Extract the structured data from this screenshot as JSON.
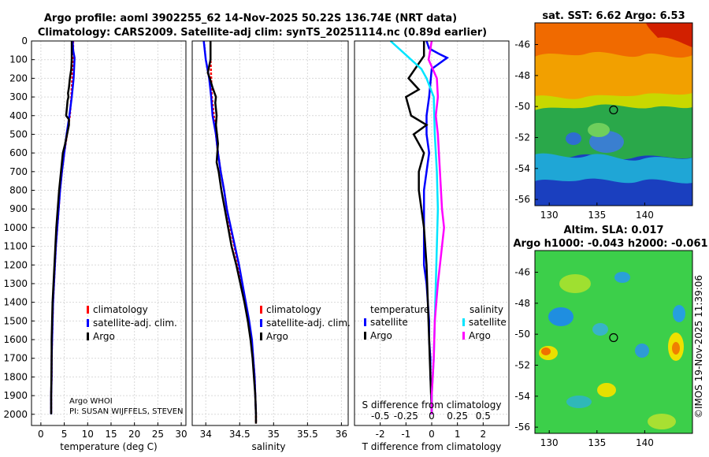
{
  "header": {
    "title_line1": "Argo profile: aoml 3902255_62 14-Nov-2025 50.22S 136.74E (NRT data)",
    "title_line2": "Climatology: CARS2009. Satellite-adj clim: synTS_20251114.nc (0.89d earlier)"
  },
  "footer": {
    "credit": "©IMOS 19-Nov-2025 11:39:06",
    "argo_center": "Argo WHOI",
    "pi": "PI: SUSAN WIJFFELS, STEVEN"
  },
  "colors": {
    "climatology": "#ff0000",
    "satellite": "#0000ff",
    "argo": "#000000",
    "sat_salinity": "#00e5ff",
    "argo_salinity": "#ff00ff"
  },
  "chart_data": [
    {
      "id": "temperature",
      "type": "line",
      "xlabel": "temperature (deg C)",
      "xlim": [
        -2,
        31
      ],
      "xticks": [
        0,
        5,
        10,
        15,
        20,
        25,
        30
      ],
      "ylim": [
        0,
        2060
      ],
      "yticks": [
        0,
        100,
        200,
        300,
        400,
        500,
        600,
        700,
        800,
        900,
        1000,
        1100,
        1200,
        1300,
        1400,
        1500,
        1600,
        1700,
        1800,
        1900,
        2000
      ],
      "legend": [
        "climatology",
        "satellite-adj. clim.",
        "Argo"
      ],
      "series": [
        {
          "name": "climatology",
          "color": "#ff0000",
          "x": [
            6.9,
            6.9,
            6.8,
            6.7,
            6.5,
            6.2,
            5.6,
            5.0,
            4.5,
            4.1,
            3.8,
            3.5,
            3.2,
            3.0,
            2.8,
            2.6,
            2.5,
            2.4,
            2.3,
            2.3,
            2.2,
            2.2
          ],
          "y": [
            0,
            50,
            100,
            200,
            300,
            400,
            500,
            600,
            700,
            800,
            900,
            1000,
            1100,
            1200,
            1300,
            1400,
            1500,
            1600,
            1700,
            1800,
            1900,
            2000
          ]
        },
        {
          "name": "satellite-adj. clim.",
          "color": "#0000ff",
          "x": [
            6.8,
            6.9,
            7.2,
            7.0,
            6.6,
            6.1,
            5.5,
            5.0,
            4.5,
            4.1,
            3.8,
            3.5,
            3.2,
            3.0,
            2.8,
            2.6,
            2.5,
            2.4,
            2.3,
            2.3,
            2.2,
            2.2
          ],
          "y": [
            0,
            50,
            90,
            200,
            300,
            400,
            500,
            600,
            700,
            800,
            900,
            1000,
            1100,
            1200,
            1300,
            1400,
            1500,
            1600,
            1700,
            1800,
            1900,
            2000
          ]
        },
        {
          "name": "Argo",
          "color": "#000000",
          "x": [
            6.6,
            6.6,
            6.5,
            6.2,
            6.0,
            5.8,
            5.9,
            5.7,
            5.6,
            5.4,
            6.0,
            6.0,
            5.6,
            5.2,
            4.7,
            4.3,
            3.9,
            3.6,
            3.3,
            3.1,
            2.9,
            2.7,
            2.5,
            2.4,
            2.3,
            2.3,
            2.2,
            2.2
          ],
          "y": [
            0,
            100,
            150,
            200,
            250,
            280,
            300,
            320,
            350,
            400,
            420,
            450,
            500,
            550,
            600,
            700,
            800,
            900,
            1000,
            1100,
            1200,
            1300,
            1400,
            1500,
            1600,
            1700,
            1900,
            2000
          ]
        }
      ]
    },
    {
      "id": "salinity",
      "type": "line",
      "xlabel": "salinity",
      "xlim": [
        33.8,
        36.1
      ],
      "xticks": [
        34,
        34.5,
        35,
        35.5,
        36
      ],
      "xticklabels": [
        "34",
        "34.5",
        "35",
        "35.5",
        "36"
      ],
      "ylim": [
        0,
        2060
      ],
      "legend": [
        "climatology",
        "satellite-adj. clim.",
        "Argo"
      ],
      "series": [
        {
          "name": "climatology",
          "color": "#ff0000",
          "x": [
            34.07,
            34.07,
            34.08,
            34.09,
            34.12,
            34.15,
            34.18,
            34.22,
            34.27,
            34.31,
            34.36,
            34.42,
            34.48,
            34.53,
            34.58,
            34.63,
            34.67,
            34.7,
            34.72,
            34.73,
            34.74,
            34.74
          ],
          "y": [
            0,
            100,
            200,
            300,
            400,
            500,
            600,
            700,
            800,
            900,
            1000,
            1100,
            1200,
            1300,
            1400,
            1500,
            1600,
            1700,
            1800,
            1900,
            2000,
            2050
          ]
        },
        {
          "name": "satellite-adj. clim.",
          "color": "#0000ff",
          "x": [
            33.97,
            34.0,
            34.05,
            34.08,
            34.1,
            34.15,
            34.18,
            34.22,
            34.27,
            34.31,
            34.37,
            34.43,
            34.49,
            34.54,
            34.59,
            34.64,
            34.68,
            34.7,
            34.72,
            34.73,
            34.74
          ],
          "y": [
            0,
            100,
            200,
            300,
            400,
            500,
            600,
            700,
            800,
            900,
            1000,
            1100,
            1200,
            1300,
            1400,
            1500,
            1600,
            1700,
            1800,
            1900,
            2000
          ]
        },
        {
          "name": "Argo",
          "color": "#000000",
          "x": [
            34.07,
            34.07,
            34.03,
            34.06,
            34.1,
            34.13,
            34.15,
            34.14,
            34.16,
            34.15,
            34.18,
            34.16,
            34.19,
            34.23,
            34.28,
            34.33,
            34.38,
            34.45,
            34.51,
            34.57,
            34.62,
            34.66,
            34.69,
            34.71,
            34.73,
            34.74,
            34.74
          ],
          "y": [
            0,
            100,
            170,
            200,
            250,
            280,
            300,
            330,
            400,
            450,
            550,
            650,
            700,
            800,
            900,
            1000,
            1100,
            1200,
            1300,
            1400,
            1500,
            1600,
            1700,
            1800,
            1900,
            2000,
            2050
          ]
        }
      ]
    },
    {
      "id": "difference",
      "type": "line",
      "xlabel": "T difference from climatology",
      "xlabel2": "S difference from climatology",
      "xlim": [
        -3,
        3
      ],
      "xticks": [
        -2,
        -1,
        0,
        1,
        2
      ],
      "xticklabels": [
        "-2",
        "-1",
        "0",
        "1",
        "2"
      ],
      "xticks2": [
        -0.5,
        -0.25,
        0,
        0.25,
        0.5
      ],
      "xticklabels2": [
        "-0.5",
        "-0.25",
        "0",
        "0.25",
        "0.5"
      ],
      "ylim": [
        0,
        2060
      ],
      "legend_titles": [
        "temperature",
        "salinity"
      ],
      "legend": [
        "satellite",
        "Argo",
        "satellite",
        "Argo"
      ],
      "series": [
        {
          "name": "T satellite",
          "color": "#0000ff",
          "x": [
            -0.2,
            -0.1,
            0.3,
            0.6,
            0.0,
            -0.1,
            -0.2,
            -0.2,
            -0.1,
            -0.2,
            -0.3,
            -0.3,
            -0.3,
            -0.3,
            -0.3,
            -0.2,
            -0.15,
            -0.1,
            -0.1,
            -0.05,
            -0.05,
            0.0,
            0.0
          ],
          "y": [
            0,
            40,
            70,
            90,
            150,
            300,
            400,
            500,
            600,
            700,
            800,
            900,
            1000,
            1100,
            1200,
            1300,
            1400,
            1500,
            1600,
            1700,
            1800,
            1900,
            2000
          ]
        },
        {
          "name": "T Argo",
          "color": "#000000",
          "x": [
            -0.3,
            -0.3,
            -0.9,
            -0.5,
            -1.0,
            -0.8,
            -0.2,
            -0.7,
            -0.3,
            -0.5,
            -0.5,
            -0.4,
            -0.3,
            -0.2,
            -0.15,
            -0.1,
            -0.05,
            0.0
          ],
          "y": [
            0,
            80,
            200,
            260,
            300,
            400,
            450,
            500,
            600,
            700,
            800,
            900,
            1000,
            1200,
            1400,
            1600,
            1800,
            2000
          ]
        },
        {
          "name": "S satellite",
          "color": "#00e5ff",
          "x": [
            -0.4,
            -0.3,
            -0.2,
            -0.1,
            -0.05,
            0.02,
            0.03,
            0.05,
            0.06,
            0.05,
            0.04,
            0.03,
            0.02,
            0.0,
            0.0
          ],
          "y": [
            0,
            50,
            100,
            150,
            200,
            300,
            500,
            700,
            900,
            1100,
            1300,
            1500,
            1700,
            1900,
            2000
          ]
        },
        {
          "name": "S Argo",
          "color": "#ff00ff",
          "x": [
            0.0,
            -0.03,
            0.05,
            0.06,
            0.04,
            0.06,
            0.07,
            0.08,
            0.09,
            0.1,
            0.12,
            0.1,
            0.06,
            0.03,
            0.02,
            0.0,
            0.0
          ],
          "y": [
            0,
            100,
            200,
            300,
            400,
            500,
            600,
            700,
            800,
            900,
            1000,
            1100,
            1300,
            1500,
            1700,
            1900,
            2000
          ]
        }
      ]
    },
    {
      "id": "sst_map",
      "type": "heatmap",
      "title": "sat. SST: 6.62 Argo: 6.53",
      "xticks": [
        130,
        135,
        140
      ],
      "xticklabels": [
        "130",
        "135",
        "140"
      ],
      "yticks": [
        -46,
        -48,
        -50,
        -52,
        -54,
        -56
      ],
      "yticklabels": [
        "-46",
        "-48",
        "-50",
        "-52",
        "-54",
        "-56"
      ],
      "xlim": [
        128.5,
        145
      ],
      "ylim": [
        -56.4,
        -44.6
      ],
      "marker": {
        "lon": 136.74,
        "lat": -50.22
      }
    },
    {
      "id": "sla_map",
      "type": "heatmap",
      "title": "Altim. SLA: 0.017",
      "subtitle": "Argo h1000: -0.043 h2000: -0.061",
      "xticks": [
        130,
        135,
        140
      ],
      "xticklabels": [
        "130",
        "135",
        "140"
      ],
      "yticks": [
        -46,
        -48,
        -50,
        -52,
        -54,
        -56
      ],
      "yticklabels": [
        "-46",
        "-48",
        "-50",
        "-52",
        "-54",
        "-56"
      ],
      "xlim": [
        128.5,
        145
      ],
      "ylim": [
        -56.4,
        -44.6
      ],
      "marker": {
        "lon": 136.74,
        "lat": -50.22
      }
    }
  ]
}
